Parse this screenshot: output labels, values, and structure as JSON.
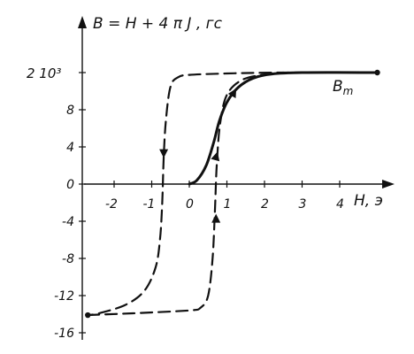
{
  "chart_data": {
    "type": "line",
    "title": "B = H + 4 π J , гс",
    "xlabel": "H, э",
    "ylabel": "B = H + 4 π J , гс",
    "y_scale_label": "2  10³",
    "xlim": [
      -2.8,
      5.2
    ],
    "ylim": [
      -17,
      14.5
    ],
    "grid": false,
    "x_ticks": [
      -2,
      -1,
      0,
      1,
      2,
      3,
      4
    ],
    "x_tick_labels": [
      "-2",
      "-1",
      "0",
      "1",
      "2",
      "3",
      "4"
    ],
    "y_ticks": [
      -16,
      -12,
      -8,
      -4,
      0,
      4,
      8,
      12
    ],
    "y_tick_labels": [
      "-16",
      "-12",
      "-8",
      "-4",
      "0",
      "4",
      "8",
      ""
    ],
    "series": [
      {
        "name": "B_m",
        "style": "solid",
        "points": [
          [
            0,
            0
          ],
          [
            0.2,
            0.4
          ],
          [
            0.45,
            2.0
          ],
          [
            0.65,
            4.5
          ],
          [
            0.8,
            6.8
          ],
          [
            1.0,
            8.8
          ],
          [
            1.3,
            10.4
          ],
          [
            1.7,
            11.4
          ],
          [
            2.2,
            11.85
          ],
          [
            3.0,
            12.0
          ],
          [
            5.0,
            12.0
          ]
        ]
      },
      {
        "name": "",
        "style": "dashed",
        "points": [
          [
            5.0,
            12.0
          ],
          [
            2.4,
            12.0
          ],
          [
            1.0,
            11.9
          ],
          [
            0.0,
            11.75
          ],
          [
            -0.3,
            11.5
          ],
          [
            -0.5,
            10.5
          ],
          [
            -0.62,
            7.0
          ],
          [
            -0.68,
            3.0
          ],
          [
            -0.72,
            -2.0
          ],
          [
            -0.78,
            -6.0
          ],
          [
            -0.9,
            -9.0
          ],
          [
            -1.2,
            -11.5
          ],
          [
            -1.7,
            -13.0
          ],
          [
            -2.4,
            -13.9
          ],
          [
            -2.7,
            -14.1
          ]
        ]
      },
      {
        "name": "",
        "style": "dashed",
        "points": [
          [
            -2.7,
            -14.1
          ],
          [
            -1.5,
            -13.9
          ],
          [
            0.0,
            -13.6
          ],
          [
            0.3,
            -13.3
          ],
          [
            0.5,
            -12.0
          ],
          [
            0.62,
            -8.0
          ],
          [
            0.68,
            -3.0
          ],
          [
            0.73,
            2.0
          ],
          [
            0.82,
            6.5
          ],
          [
            1.0,
            9.6
          ],
          [
            1.4,
            11.2
          ],
          [
            2.0,
            11.8
          ],
          [
            2.5,
            12.0
          ]
        ]
      }
    ],
    "annotations": [
      {
        "text": "B_m",
        "x": 3.35,
        "y": 9.5
      }
    ]
  }
}
